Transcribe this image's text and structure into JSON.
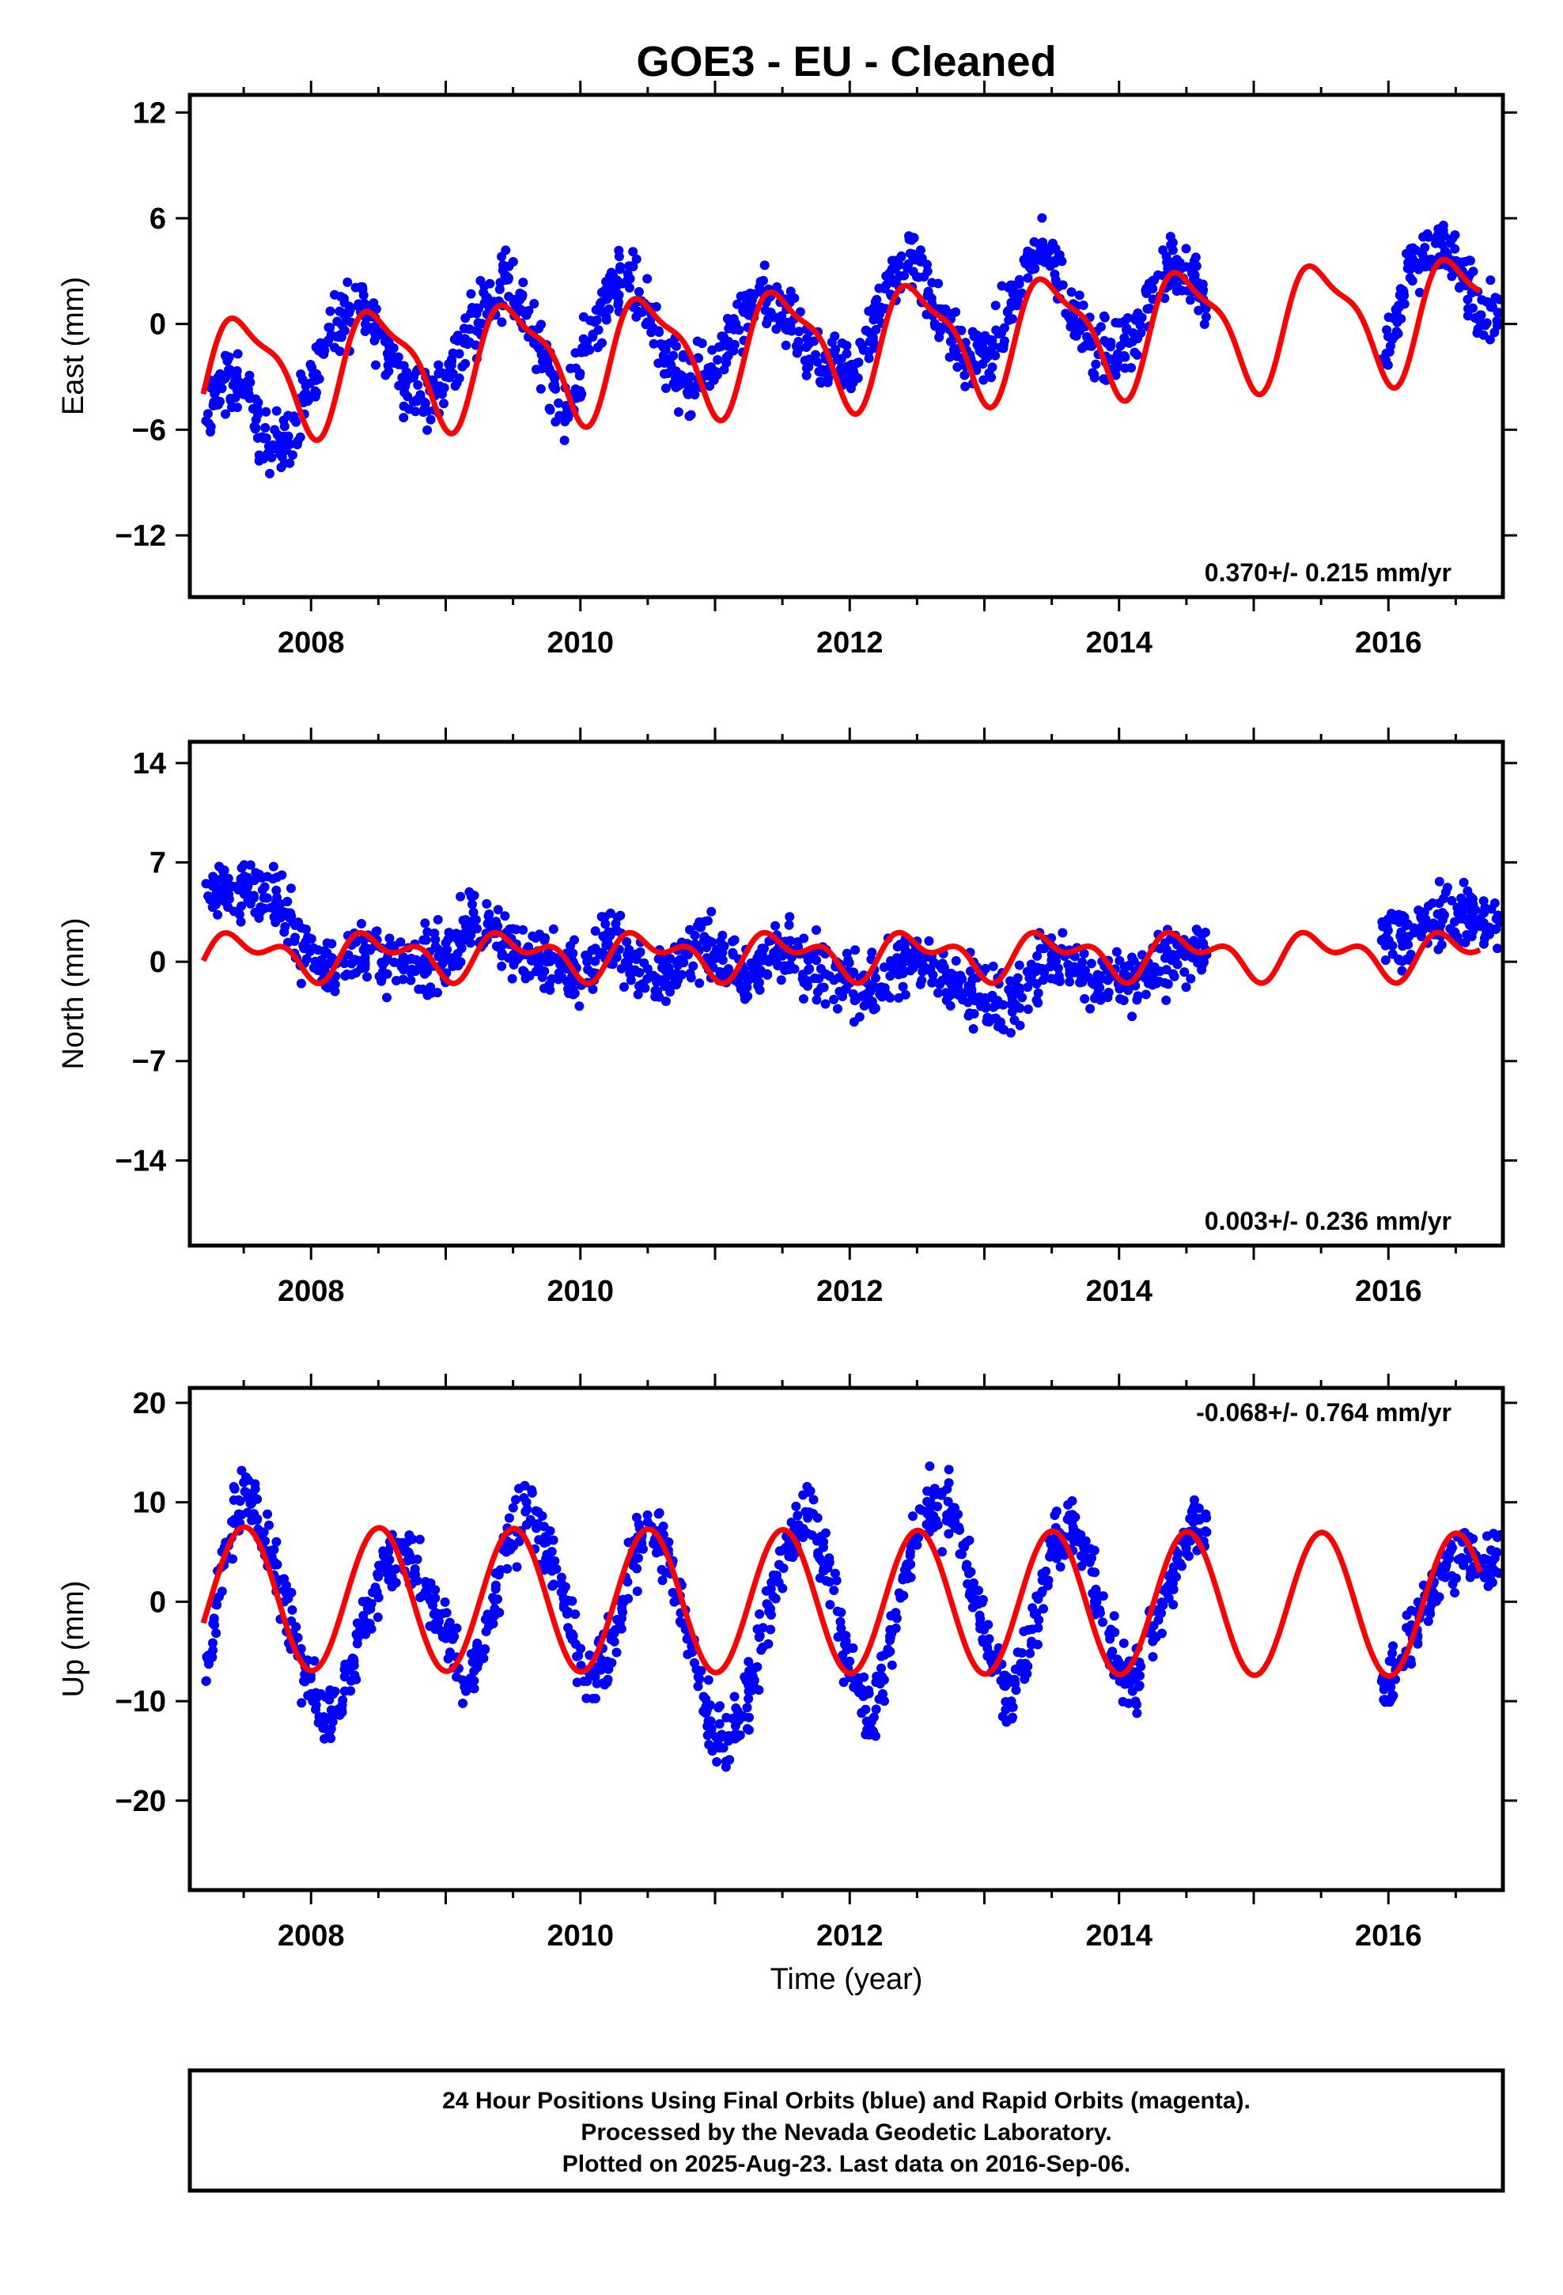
{
  "title": "GOE3  - EU - Cleaned",
  "colors": {
    "points": "#0000ff",
    "model": "#ff0000",
    "frame": "#000000"
  },
  "xlabel": "Time (year)",
  "footer": [
    "24 Hour Positions Using Final Orbits (blue) and Rapid Orbits (magenta).",
    "Processed by the Nevada Geodetic Laboratory.",
    "Plotted on 2025-Aug-23. Last data on 2016-Sep-06."
  ],
  "chart_data": [
    {
      "type": "scatter",
      "panel": "east",
      "ylabel": "East (mm)",
      "rate_label": "0.370+/- 0.215 mm/yr",
      "xlim": [
        2007.1,
        2016.85
      ],
      "ylim": [
        -15.5,
        13
      ],
      "xticks": [
        2008,
        2010,
        2012,
        2014,
        2016
      ],
      "yticks": [
        12,
        6,
        0,
        -6,
        -12
      ],
      "model": {
        "name": "",
        "offset": -1.1,
        "rate": 0.37,
        "annual": 3.2,
        "semiannual": 1.0,
        "t0": 2012
      },
      "series": [
        {
          "name": "",
          "x": [
            2007.22,
            2007.35,
            2007.5,
            2007.65,
            2007.8,
            2007.95,
            2008.1,
            2008.25,
            2008.4,
            2008.55,
            2008.7,
            2008.85,
            2009.0,
            2009.15,
            2009.3,
            2009.45,
            2009.6,
            2009.75,
            2009.9,
            2010.05,
            2010.2,
            2010.35,
            2010.5,
            2010.65,
            2010.8,
            2010.95,
            2011.1,
            2011.25,
            2011.4,
            2011.55,
            2011.7,
            2011.85,
            2012.0,
            2012.15,
            2012.3,
            2012.45,
            2012.6,
            2012.75,
            2012.9,
            2013.05,
            2013.2,
            2013.35,
            2013.5,
            2013.65,
            2013.8,
            2013.95,
            2014.1,
            2014.25,
            2014.4,
            2014.55,
            2014.65,
            2015.95,
            2016.1,
            2016.25,
            2016.4,
            2016.55,
            2016.68
          ],
          "y": [
            -5.5,
            -3.0,
            -4.0,
            -6.5,
            -7.0,
            -4.0,
            -1.5,
            0.5,
            1.0,
            -1.0,
            -3.5,
            -4.5,
            -3.0,
            -1.0,
            1.5,
            2.5,
            0.5,
            -2.5,
            -5.0,
            -1.0,
            1.5,
            2.5,
            1.0,
            -2.0,
            -4.0,
            -2.5,
            -1.0,
            0.5,
            1.5,
            0.0,
            -2.0,
            -2.5,
            -2.5,
            -1.0,
            2.5,
            4.0,
            1.5,
            -1.0,
            -2.0,
            -1.5,
            1.0,
            4.0,
            3.5,
            1.0,
            -1.0,
            -2.0,
            -1.0,
            2.0,
            3.5,
            3.0,
            1.0,
            -2.0,
            1.5,
            4.0,
            4.5,
            3.0,
            0.5
          ]
        }
      ]
    },
    {
      "type": "scatter",
      "panel": "north",
      "ylabel": "North (mm)",
      "rate_label": "0.003+/- 0.236 mm/yr",
      "xlim": [
        2007.1,
        2016.85
      ],
      "ylim": [
        -20,
        15.5
      ],
      "xticks": [
        2008,
        2010,
        2012,
        2014,
        2016
      ],
      "yticks": [
        14,
        7,
        0,
        -7,
        -14
      ],
      "model": {
        "name": "",
        "offset": 0.5,
        "rate": 0.003,
        "annual": 1.2,
        "semiannual": 0.9,
        "t0": 2012
      },
      "series": [
        {
          "name": "",
          "x": [
            2007.22,
            2007.35,
            2007.5,
            2007.65,
            2007.8,
            2007.95,
            2008.1,
            2008.25,
            2008.4,
            2008.55,
            2008.7,
            2008.85,
            2009.0,
            2009.15,
            2009.3,
            2009.45,
            2009.6,
            2009.75,
            2009.9,
            2010.05,
            2010.2,
            2010.35,
            2010.5,
            2010.65,
            2010.8,
            2010.95,
            2011.1,
            2011.25,
            2011.4,
            2011.55,
            2011.7,
            2011.85,
            2012.0,
            2012.15,
            2012.3,
            2012.45,
            2012.6,
            2012.75,
            2012.9,
            2013.05,
            2013.2,
            2013.35,
            2013.5,
            2013.65,
            2013.8,
            2013.95,
            2014.1,
            2014.25,
            2014.4,
            2014.55,
            2014.65,
            2015.95,
            2016.1,
            2016.25,
            2016.4,
            2016.55,
            2016.68
          ],
          "y": [
            5.5,
            5.0,
            5.5,
            4.5,
            3.5,
            1.0,
            -0.5,
            0.5,
            1.0,
            0.0,
            -0.5,
            0.0,
            0.5,
            2.5,
            2.0,
            1.5,
            0.5,
            0.0,
            -0.5,
            0.0,
            1.5,
            0.5,
            -0.5,
            -1.0,
            0.5,
            1.5,
            -0.5,
            -1.0,
            0.0,
            0.5,
            -0.5,
            -1.0,
            -1.5,
            -2.0,
            -1.0,
            0.0,
            -0.5,
            -1.5,
            -2.0,
            -2.5,
            -3.0,
            -1.0,
            0.5,
            -0.5,
            -1.5,
            -1.0,
            -1.5,
            -0.5,
            0.5,
            1.0,
            0.5,
            1.5,
            1.5,
            2.5,
            3.0,
            3.5,
            2.5
          ]
        }
      ]
    },
    {
      "type": "scatter",
      "panel": "up",
      "ylabel": "Up (mm)",
      "rate_label": "-0.068+/- 0.764 mm/yr",
      "xlim": [
        2007.1,
        2016.85
      ],
      "ylim": [
        -29,
        21.5
      ],
      "xticks": [
        2008,
        2010,
        2012,
        2014,
        2016
      ],
      "yticks": [
        20,
        10,
        0,
        -10,
        -20
      ],
      "model": {
        "name": "",
        "offset": 0.0,
        "rate": -0.068,
        "annual": 7.2,
        "semiannual": 0.0,
        "t0": 2012
      },
      "series": [
        {
          "name": "",
          "x": [
            2007.22,
            2007.35,
            2007.5,
            2007.65,
            2007.8,
            2007.95,
            2008.1,
            2008.25,
            2008.4,
            2008.55,
            2008.7,
            2008.85,
            2009.0,
            2009.15,
            2009.3,
            2009.45,
            2009.6,
            2009.75,
            2009.9,
            2010.05,
            2010.2,
            2010.35,
            2010.5,
            2010.65,
            2010.8,
            2010.95,
            2011.1,
            2011.25,
            2011.4,
            2011.55,
            2011.7,
            2011.85,
            2012.0,
            2012.15,
            2012.3,
            2012.45,
            2012.6,
            2012.75,
            2012.9,
            2013.05,
            2013.2,
            2013.35,
            2013.5,
            2013.65,
            2013.8,
            2013.95,
            2014.1,
            2014.25,
            2014.4,
            2014.55,
            2014.65,
            2015.95,
            2016.1,
            2016.25,
            2016.4,
            2016.55,
            2016.68
          ],
          "y": [
            -8.0,
            5.0,
            12.0,
            7.0,
            0.0,
            -8.0,
            -12.0,
            -9.0,
            -2.0,
            4.0,
            5.0,
            1.0,
            -3.0,
            -9.0,
            -3.0,
            5.0,
            10.0,
            6.0,
            -1.0,
            -8.0,
            -6.0,
            2.0,
            8.0,
            5.0,
            -3.0,
            -12.0,
            -14.0,
            -9.0,
            -1.0,
            6.0,
            9.0,
            2.0,
            -6.0,
            -12.0,
            -5.0,
            5.0,
            10.0,
            9.0,
            3.0,
            -6.0,
            -10.0,
            -4.0,
            5.0,
            8.0,
            3.0,
            -5.0,
            -9.0,
            -4.0,
            3.0,
            8.0,
            7.0,
            -8.0,
            -6.0,
            -1.0,
            3.0,
            6.0,
            4.0
          ]
        }
      ]
    }
  ]
}
